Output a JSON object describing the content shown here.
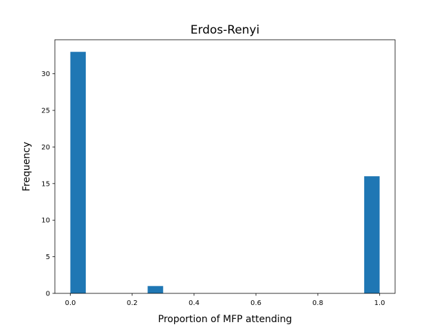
{
  "chart_data": {
    "type": "bar",
    "title": "Erdos-Renyi",
    "xlabel": "Proportion of MFP attending",
    "ylabel": "Frequency",
    "xlim": [
      -0.05,
      1.05
    ],
    "ylim": [
      0,
      34.65
    ],
    "grid": false,
    "bar_color": "#1f77b4",
    "bins": [
      {
        "x_start": 0.0,
        "x_end": 0.05,
        "value": 33
      },
      {
        "x_start": 0.25,
        "x_end": 0.3,
        "value": 1
      },
      {
        "x_start": 0.95,
        "x_end": 1.0,
        "value": 16
      }
    ],
    "x_ticks": [
      {
        "value": 0.0,
        "label": "0.0"
      },
      {
        "value": 0.2,
        "label": "0.2"
      },
      {
        "value": 0.4,
        "label": "0.4"
      },
      {
        "value": 0.6,
        "label": "0.6"
      },
      {
        "value": 0.8,
        "label": "0.8"
      },
      {
        "value": 1.0,
        "label": "1.0"
      }
    ],
    "y_ticks": [
      {
        "value": 0,
        "label": "0"
      },
      {
        "value": 5,
        "label": "5"
      },
      {
        "value": 10,
        "label": "10"
      },
      {
        "value": 15,
        "label": "15"
      },
      {
        "value": 20,
        "label": "20"
      },
      {
        "value": 25,
        "label": "25"
      },
      {
        "value": 30,
        "label": "30"
      }
    ]
  }
}
